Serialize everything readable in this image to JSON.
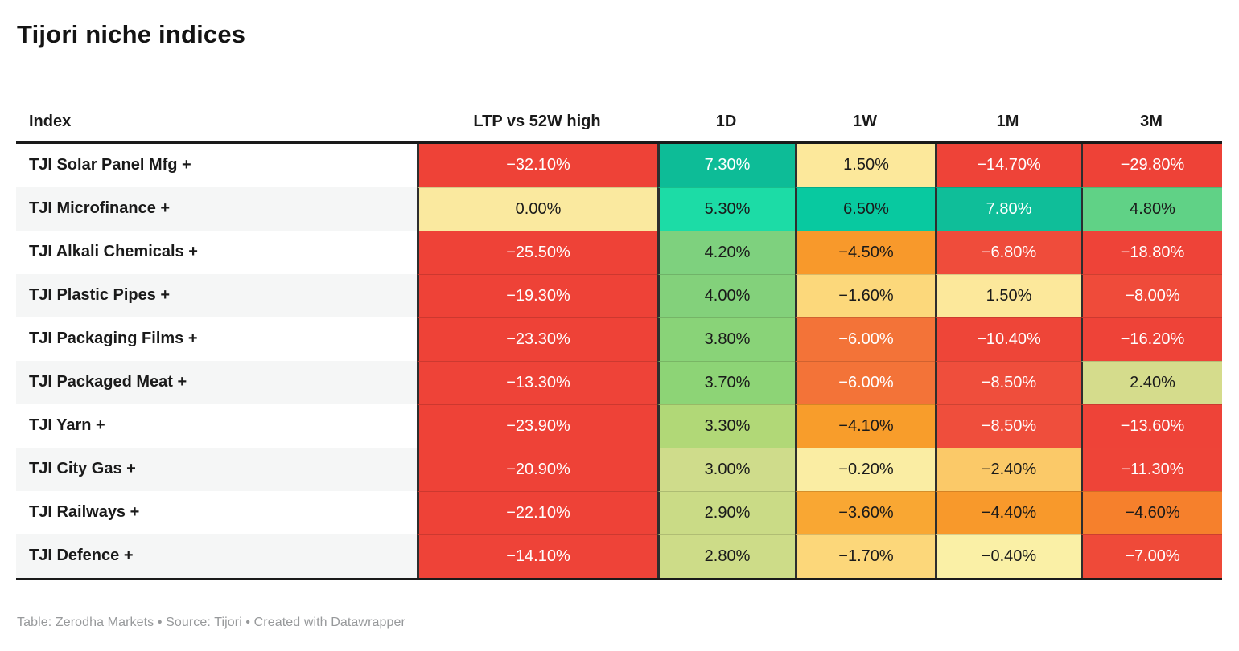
{
  "title": "Tijori niche indices",
  "footer": {
    "table_label": "Table: ",
    "table_value": "Zerodha Markets",
    "sep1": " • ",
    "source_label": "Source: ",
    "source_value": "Tijori",
    "sep2": " • ",
    "credit": "Created with Datawrapper"
  },
  "colors": {
    "column_divider": "#2e2e2e",
    "header_rule": "#1a1a1a",
    "zebra_stripe": "#f5f6f6",
    "text_dark": "#1a1a1a",
    "text_light": "#ffffff",
    "footer_text": "#97999b",
    "scale_red": "#ee4237",
    "scale_orange": "#f8992b",
    "scale_yellow": "#fae99f",
    "scale_green": "#7ed17e",
    "scale_teal": "#0dbc97"
  },
  "chart_data": {
    "type": "table",
    "title": "Tijori niche indices",
    "columns": [
      "Index",
      "LTP vs 52W high",
      "1D",
      "1W",
      "1M",
      "3M"
    ],
    "rows": [
      {
        "label": "TJI Solar Panel Mfg +",
        "cells": [
          {
            "text": "−32.10%",
            "bg": "#ee4237",
            "fg": "#ffffff"
          },
          {
            "text": "7.30%",
            "bg": "#0dbc97",
            "fg": "#ffffff"
          },
          {
            "text": "1.50%",
            "bg": "#fce89b",
            "fg": "#1a1a1a"
          },
          {
            "text": "−14.70%",
            "bg": "#ee4338",
            "fg": "#ffffff"
          },
          {
            "text": "−29.80%",
            "bg": "#ee4237",
            "fg": "#ffffff"
          }
        ]
      },
      {
        "label": "TJI Microfinance +",
        "cells": [
          {
            "text": "0.00%",
            "bg": "#fae99f",
            "fg": "#1a1a1a"
          },
          {
            "text": "5.30%",
            "bg": "#1cdca6",
            "fg": "#1a1a1a"
          },
          {
            "text": "6.50%",
            "bg": "#08c9a0",
            "fg": "#1a1a1a"
          },
          {
            "text": "7.80%",
            "bg": "#0fbe99",
            "fg": "#ffffff"
          },
          {
            "text": "4.80%",
            "bg": "#60d286",
            "fg": "#1a1a1a"
          }
        ]
      },
      {
        "label": "TJI Alkali Chemicals +",
        "cells": [
          {
            "text": "−25.50%",
            "bg": "#ee4237",
            "fg": "#ffffff"
          },
          {
            "text": "4.20%",
            "bg": "#7ed17e",
            "fg": "#1a1a1a"
          },
          {
            "text": "−4.50%",
            "bg": "#f8992b",
            "fg": "#1a1a1a"
          },
          {
            "text": "−6.80%",
            "bg": "#ef4c3b",
            "fg": "#ffffff"
          },
          {
            "text": "−18.80%",
            "bg": "#ee4338",
            "fg": "#ffffff"
          }
        ]
      },
      {
        "label": "TJI Plastic Pipes +",
        "cells": [
          {
            "text": "−19.30%",
            "bg": "#ee4237",
            "fg": "#ffffff"
          },
          {
            "text": "4.00%",
            "bg": "#83d17b",
            "fg": "#1a1a1a"
          },
          {
            "text": "−1.60%",
            "bg": "#fcd87b",
            "fg": "#1a1a1a"
          },
          {
            "text": "1.50%",
            "bg": "#fce89b",
            "fg": "#1a1a1a"
          },
          {
            "text": "−8.00%",
            "bg": "#ef4b3a",
            "fg": "#ffffff"
          }
        ]
      },
      {
        "label": "TJI Packaging Films +",
        "cells": [
          {
            "text": "−23.30%",
            "bg": "#ee4237",
            "fg": "#ffffff"
          },
          {
            "text": "3.80%",
            "bg": "#89d378",
            "fg": "#1a1a1a"
          },
          {
            "text": "−6.00%",
            "bg": "#f37338",
            "fg": "#ffffff"
          },
          {
            "text": "−10.40%",
            "bg": "#ee4538",
            "fg": "#ffffff"
          },
          {
            "text": "−16.20%",
            "bg": "#ee4338",
            "fg": "#ffffff"
          }
        ]
      },
      {
        "label": "TJI Packaged Meat +",
        "cells": [
          {
            "text": "−13.30%",
            "bg": "#ee4338",
            "fg": "#ffffff"
          },
          {
            "text": "3.70%",
            "bg": "#8dd476",
            "fg": "#1a1a1a"
          },
          {
            "text": "−6.00%",
            "bg": "#f37338",
            "fg": "#ffffff"
          },
          {
            "text": "−8.50%",
            "bg": "#ef4e3c",
            "fg": "#ffffff"
          },
          {
            "text": "2.40%",
            "bg": "#d5dc8c",
            "fg": "#1a1a1a"
          }
        ]
      },
      {
        "label": "TJI Yarn +",
        "cells": [
          {
            "text": "−23.90%",
            "bg": "#ee4237",
            "fg": "#ffffff"
          },
          {
            "text": "3.30%",
            "bg": "#b1d877",
            "fg": "#1a1a1a"
          },
          {
            "text": "−4.10%",
            "bg": "#f89d2b",
            "fg": "#1a1a1a"
          },
          {
            "text": "−8.50%",
            "bg": "#ef4e3c",
            "fg": "#ffffff"
          },
          {
            "text": "−13.60%",
            "bg": "#ee4338",
            "fg": "#ffffff"
          }
        ]
      },
      {
        "label": "TJI City Gas +",
        "cells": [
          {
            "text": "−20.90%",
            "bg": "#ee4237",
            "fg": "#ffffff"
          },
          {
            "text": "3.00%",
            "bg": "#cfdc8b",
            "fg": "#1a1a1a"
          },
          {
            "text": "−0.20%",
            "bg": "#faeda3",
            "fg": "#1a1a1a"
          },
          {
            "text": "−2.40%",
            "bg": "#fbc968",
            "fg": "#1a1a1a"
          },
          {
            "text": "−11.30%",
            "bg": "#ee4438",
            "fg": "#ffffff"
          }
        ]
      },
      {
        "label": "TJI Railways +",
        "cells": [
          {
            "text": "−22.10%",
            "bg": "#ee4237",
            "fg": "#ffffff"
          },
          {
            "text": "2.90%",
            "bg": "#cadb86",
            "fg": "#1a1a1a"
          },
          {
            "text": "−3.60%",
            "bg": "#f9a733",
            "fg": "#1a1a1a"
          },
          {
            "text": "−4.40%",
            "bg": "#f8992b",
            "fg": "#1a1a1a"
          },
          {
            "text": "−4.60%",
            "bg": "#f6802c",
            "fg": "#1a1a1a"
          }
        ]
      },
      {
        "label": "TJI Defence +",
        "cells": [
          {
            "text": "−14.10%",
            "bg": "#ee4338",
            "fg": "#ffffff"
          },
          {
            "text": "2.80%",
            "bg": "#cddc88",
            "fg": "#1a1a1a"
          },
          {
            "text": "−1.70%",
            "bg": "#fcd77a",
            "fg": "#1a1a1a"
          },
          {
            "text": "−0.40%",
            "bg": "#faf0a6",
            "fg": "#1a1a1a"
          },
          {
            "text": "−7.00%",
            "bg": "#ef4a39",
            "fg": "#ffffff"
          }
        ]
      }
    ],
    "footer": "Table: Zerodha Markets • Source: Tijori • Created with Datawrapper",
    "layout_hints": {
      "heatmap": true,
      "zebra_striping_on_index_column": true,
      "value_columns_divided_by_dark_rules": true
    }
  }
}
